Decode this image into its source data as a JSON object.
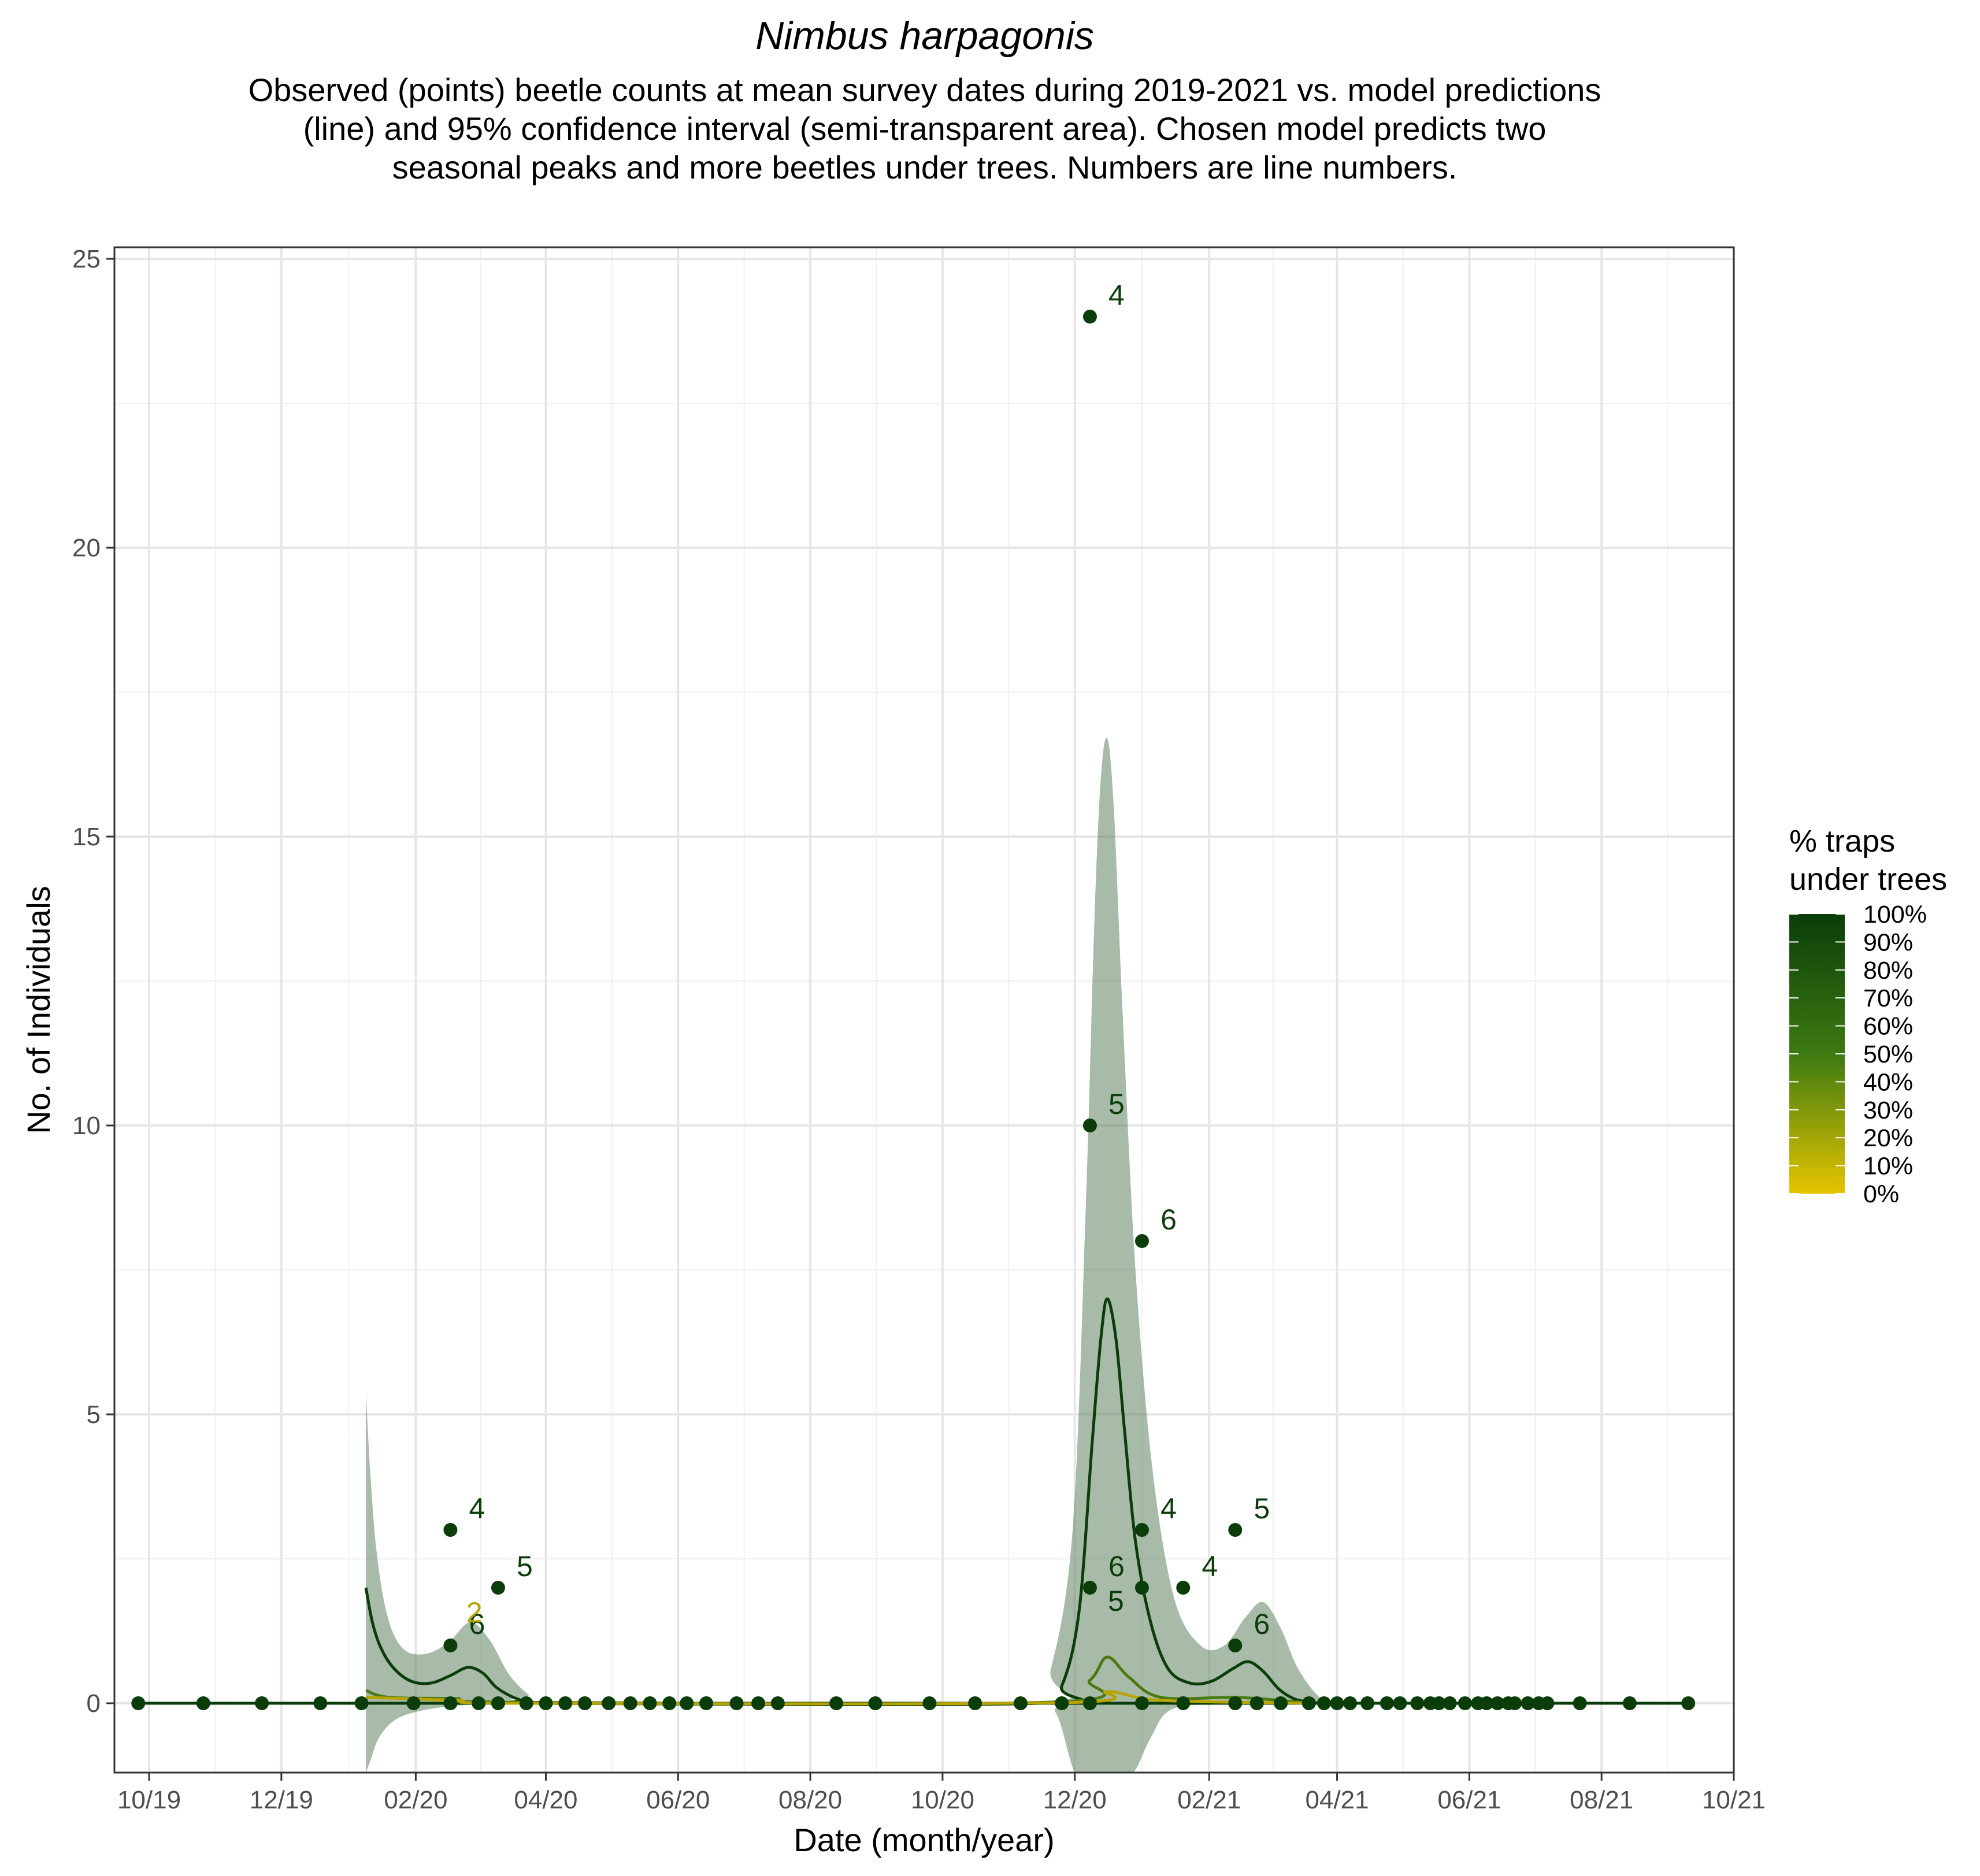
{
  "chart_data": {
    "type": "scatter",
    "title": "Nimbus harpagonis",
    "subtitle": "Observed (points) beetle counts at mean survey dates during 2019-2021 vs. model predictions (line) and 95% confidence interval (semi-transparent area). Chosen model predicts two seasonal peaks and more beetles under trees. Numbers are line numbers.",
    "xlabel": "Date (month/year)",
    "ylabel": "No. of Individuals",
    "xlim": [
      "2019-09-15",
      "2021-10-01"
    ],
    "ylim": [
      -1.2,
      25.2
    ],
    "x_ticks": [
      {
        "date": "2019-10-01",
        "label": "10/19"
      },
      {
        "date": "2019-12-01",
        "label": "12/19"
      },
      {
        "date": "2020-02-01",
        "label": "02/20"
      },
      {
        "date": "2020-04-01",
        "label": "04/20"
      },
      {
        "date": "2020-06-01",
        "label": "06/20"
      },
      {
        "date": "2020-08-01",
        "label": "08/20"
      },
      {
        "date": "2020-10-01",
        "label": "10/20"
      },
      {
        "date": "2020-12-01",
        "label": "12/20"
      },
      {
        "date": "2021-02-01",
        "label": "02/21"
      },
      {
        "date": "2021-04-01",
        "label": "04/21"
      },
      {
        "date": "2021-06-01",
        "label": "06/21"
      },
      {
        "date": "2021-08-01",
        "label": "08/21"
      },
      {
        "date": "2021-10-01",
        "label": "10/21"
      }
    ],
    "y_ticks": [
      0,
      5,
      10,
      15,
      20,
      25
    ],
    "grid": true,
    "legend": {
      "title": "% traps under trees",
      "position": "right",
      "entries": [
        "100%",
        "90%",
        "80%",
        "70%",
        "60%",
        "50%",
        "40%",
        "30%",
        "20%",
        "10%",
        "0%"
      ],
      "color_high": "#0a3d0a",
      "color_mid": "#3d7a12",
      "color_low": "#e6c400"
    },
    "colors": {
      "points": "#0a3d0a",
      "ci_fill": "#587a58",
      "line_high": "#0a3d0a",
      "line_mid": "#4a7a10",
      "line_low": "#b8a400"
    },
    "points": [
      {
        "date": "2019-09-26",
        "y": 0
      },
      {
        "date": "2019-10-26",
        "y": 0
      },
      {
        "date": "2019-11-22",
        "y": 0
      },
      {
        "date": "2019-12-19",
        "y": 0
      },
      {
        "date": "2020-01-07",
        "y": 0
      },
      {
        "date": "2020-01-31",
        "y": 0
      },
      {
        "date": "2020-02-17",
        "y": 0
      },
      {
        "date": "2020-02-17",
        "y": 1,
        "label": "6",
        "label_color": "#0a3d0a"
      },
      {
        "date": "2020-02-17",
        "y": 3,
        "label": "4",
        "label_color": "#0a3d0a"
      },
      {
        "date": "2020-03-01",
        "y": 0
      },
      {
        "date": "2020-03-10",
        "y": 0
      },
      {
        "date": "2020-03-10",
        "y": 2,
        "label": "5",
        "label_color": "#0a3d0a"
      },
      {
        "date": "2020-03-23",
        "y": 0
      },
      {
        "date": "2020-04-01",
        "y": 0
      },
      {
        "date": "2020-04-10",
        "y": 0
      },
      {
        "date": "2020-04-19",
        "y": 0
      },
      {
        "date": "2020-04-30",
        "y": 0
      },
      {
        "date": "2020-05-10",
        "y": 0
      },
      {
        "date": "2020-05-19",
        "y": 0
      },
      {
        "date": "2020-05-28",
        "y": 0
      },
      {
        "date": "2020-06-05",
        "y": 0
      },
      {
        "date": "2020-06-14",
        "y": 0
      },
      {
        "date": "2020-06-28",
        "y": 0
      },
      {
        "date": "2020-07-08",
        "y": 0
      },
      {
        "date": "2020-07-17",
        "y": 0
      },
      {
        "date": "2020-08-13",
        "y": 0
      },
      {
        "date": "2020-08-31",
        "y": 0
      },
      {
        "date": "2020-09-25",
        "y": 0
      },
      {
        "date": "2020-10-16",
        "y": 0
      },
      {
        "date": "2020-11-06",
        "y": 0
      },
      {
        "date": "2020-11-25",
        "y": 0
      },
      {
        "date": "2020-12-08",
        "y": 0
      },
      {
        "date": "2020-12-08",
        "y": 2,
        "label": "6",
        "label_color": "#0a3d0a"
      },
      {
        "date": "2020-12-08",
        "y": 10,
        "label": "5",
        "label_color": "#0a3d0a"
      },
      {
        "date": "2020-12-08",
        "y": 24,
        "label": "4",
        "label_color": "#0a3d0a"
      },
      {
        "date": "2021-01-01",
        "y": 0
      },
      {
        "date": "2021-01-01",
        "y": 2
      },
      {
        "date": "2021-01-01",
        "y": 3,
        "label": "4",
        "label_color": "#0a3d0a"
      },
      {
        "date": "2021-01-01",
        "y": 8,
        "label": "6",
        "label_color": "#0a3d0a"
      },
      {
        "date": "2021-01-20",
        "y": 0
      },
      {
        "date": "2021-01-20",
        "y": 2,
        "label": "4",
        "label_color": "#0a3d0a"
      },
      {
        "date": "2021-02-13",
        "y": 0
      },
      {
        "date": "2021-02-13",
        "y": 1,
        "label": "6",
        "label_color": "#0a3d0a"
      },
      {
        "date": "2021-02-13",
        "y": 3,
        "label": "5",
        "label_color": "#0a3d0a"
      },
      {
        "date": "2021-02-23",
        "y": 0
      },
      {
        "date": "2021-03-06",
        "y": 0
      },
      {
        "date": "2021-03-19",
        "y": 0
      },
      {
        "date": "2021-03-26",
        "y": 0
      },
      {
        "date": "2021-04-01",
        "y": 0
      },
      {
        "date": "2021-04-07",
        "y": 0
      },
      {
        "date": "2021-04-15",
        "y": 0
      },
      {
        "date": "2021-04-24",
        "y": 0
      },
      {
        "date": "2021-04-30",
        "y": 0
      },
      {
        "date": "2021-05-08",
        "y": 0
      },
      {
        "date": "2021-05-14",
        "y": 0
      },
      {
        "date": "2021-05-18",
        "y": 0
      },
      {
        "date": "2021-05-23",
        "y": 0
      },
      {
        "date": "2021-05-30",
        "y": 0
      },
      {
        "date": "2021-06-05",
        "y": 0
      },
      {
        "date": "2021-06-09",
        "y": 0
      },
      {
        "date": "2021-06-14",
        "y": 0
      },
      {
        "date": "2021-06-19",
        "y": 0
      },
      {
        "date": "2021-06-22",
        "y": 0
      },
      {
        "date": "2021-06-28",
        "y": 0
      },
      {
        "date": "2021-07-03",
        "y": 0
      },
      {
        "date": "2021-07-07",
        "y": 0
      },
      {
        "date": "2021-07-22",
        "y": 0
      },
      {
        "date": "2021-08-14",
        "y": 0
      },
      {
        "date": "2021-09-10",
        "y": 0
      }
    ],
    "extra_labels": [
      {
        "date": "2020-02-28",
        "y": 1.4,
        "text": "2",
        "color": "#b8a400"
      },
      {
        "date": "2020-12-20",
        "y": 1.6,
        "text": "5",
        "color": "#0a3d0a"
      }
    ],
    "series": [
      {
        "name": "100%",
        "color": "#0a3d0a",
        "x": [
          "2020-01-09",
          "2020-01-12",
          "2020-01-16",
          "2020-01-22",
          "2020-01-30",
          "2020-02-08",
          "2020-02-17",
          "2020-02-25",
          "2020-03-03",
          "2020-03-09",
          "2020-03-16",
          "2020-03-22",
          "2020-03-29",
          "2020-11-15",
          "2020-11-25",
          "2020-12-03",
          "2020-12-09",
          "2020-12-13",
          "2020-12-16",
          "2020-12-20",
          "2020-12-24",
          "2020-12-29",
          "2021-01-05",
          "2021-01-13",
          "2021-01-23",
          "2021-02-02",
          "2021-02-12",
          "2021-02-19",
          "2021-02-26",
          "2021-03-05",
          "2021-03-12",
          "2021-03-19",
          "2021-03-26"
        ],
        "y": [
          2.0,
          1.4,
          0.95,
          0.6,
          0.38,
          0.35,
          0.48,
          0.62,
          0.52,
          0.28,
          0.12,
          0.04,
          0.0,
          0.0,
          0.3,
          1.6,
          4.5,
          6.3,
          7.0,
          6.3,
          4.7,
          2.8,
          1.4,
          0.6,
          0.35,
          0.38,
          0.6,
          0.72,
          0.55,
          0.25,
          0.08,
          0.02,
          0.0
        ]
      },
      {
        "name": "50%",
        "color": "#4a7a10",
        "x": [
          "2020-01-09",
          "2020-01-20",
          "2020-02-20",
          "2020-03-10",
          "2020-11-20",
          "2020-12-08",
          "2020-12-16",
          "2020-12-26",
          "2021-01-10",
          "2021-02-15",
          "2021-03-20"
        ],
        "y": [
          0.22,
          0.1,
          0.08,
          0.02,
          0.02,
          0.4,
          0.8,
          0.45,
          0.1,
          0.1,
          0.0
        ]
      },
      {
        "name": "0%",
        "color": "#b8a400",
        "x": [
          "2020-01-09",
          "2020-02-20",
          "2020-03-20",
          "2020-11-25",
          "2020-12-16",
          "2021-01-10",
          "2021-03-20"
        ],
        "y": [
          0.1,
          0.05,
          0.0,
          0.01,
          0.2,
          0.05,
          0.0
        ]
      }
    ],
    "ci_upper": {
      "x": [
        "2020-01-09",
        "2020-01-11",
        "2020-01-14",
        "2020-01-19",
        "2020-01-26",
        "2020-02-05",
        "2020-02-16",
        "2020-02-26",
        "2020-03-06",
        "2020-03-15",
        "2020-03-24",
        "2020-03-31",
        "2020-11-10",
        "2020-11-20",
        "2020-11-30",
        "2020-12-06",
        "2020-12-10",
        "2020-12-13",
        "2020-12-16",
        "2020-12-19",
        "2020-12-23",
        "2020-12-29",
        "2021-01-06",
        "2021-01-16",
        "2021-01-28",
        "2021-02-08",
        "2021-02-18",
        "2021-02-26",
        "2021-03-06",
        "2021-03-14",
        "2021-03-24",
        "2021-04-01"
      ],
      "y": [
        5.4,
        4.0,
        2.6,
        1.5,
        0.95,
        0.85,
        1.05,
        1.4,
        1.1,
        0.5,
        0.15,
        0.0,
        0.0,
        0.6,
        3.0,
        8.5,
        13.5,
        16.0,
        16.7,
        15.5,
        12.0,
        7.5,
        4.0,
        1.8,
        1.0,
        1.0,
        1.5,
        1.75,
        1.3,
        0.6,
        0.1,
        0.0
      ]
    },
    "ci_lower": {
      "x": [
        "2020-01-09",
        "2020-01-11",
        "2020-01-15",
        "2020-01-22",
        "2020-02-01",
        "2020-02-15",
        "2020-03-01",
        "2020-03-31",
        "2020-11-10",
        "2020-11-22",
        "2020-12-01",
        "2020-12-08",
        "2020-12-14",
        "2020-12-20",
        "2020-12-28",
        "2021-01-05",
        "2021-01-15",
        "2021-02-10",
        "2021-04-01"
      ],
      "y": [
        -1.2,
        -1.0,
        -0.6,
        -0.3,
        -0.15,
        -0.06,
        -0.02,
        0.0,
        0.0,
        -0.15,
        -1.2,
        -1.2,
        -1.2,
        -1.2,
        -1.2,
        -0.6,
        -0.1,
        -0.02,
        0.0
      ]
    }
  }
}
